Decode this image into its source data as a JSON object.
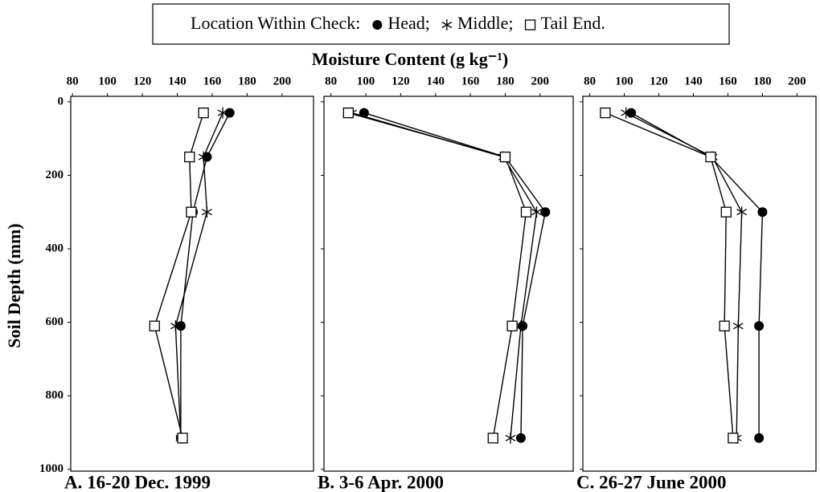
{
  "legend_title": "Location Within Check:",
  "xlabel": "Moisture Content (g kg⁻¹)",
  "ylabel": "Soil Depth (mm)",
  "chart_data": [
    {
      "type": "line",
      "title": "A. 16-20 Dec. 1999",
      "y": [
        30,
        150,
        300,
        610,
        915
      ],
      "xlim": [
        79,
        218
      ],
      "xticks": [
        80,
        100,
        120,
        140,
        160,
        180,
        200
      ],
      "ylim": [
        -15,
        1005
      ],
      "y_inverted": true,
      "yticks": [
        0,
        200,
        400,
        600,
        800,
        1000
      ],
      "ytick_labels": true,
      "series": [
        {
          "name": "Head;",
          "color": "#000000",
          "marker": "circle",
          "values": [
            170,
            157,
            149,
            142,
            142
          ]
        },
        {
          "name": "Middle;",
          "color": "#000000",
          "marker": "asterisk",
          "values": [
            166,
            155,
            157,
            139,
            142
          ]
        },
        {
          "name": "Tail End.",
          "color": "#000000",
          "marker": "square",
          "values": [
            155,
            147,
            148,
            127,
            143
          ]
        }
      ]
    },
    {
      "type": "line",
      "title": "B. 3-6 Apr. 2000",
      "y": [
        30,
        150,
        300,
        610,
        915
      ],
      "xlim": [
        76,
        219
      ],
      "xticks": [
        80,
        100,
        120,
        140,
        160,
        180,
        200
      ],
      "ylim": [
        -15,
        1005
      ],
      "y_inverted": true,
      "yticks": [
        0,
        200,
        400,
        600,
        800,
        1000
      ],
      "ytick_labels": false,
      "series": [
        {
          "name": "Head;",
          "color": "#000000",
          "marker": "circle",
          "values": [
            99,
            180,
            203,
            190,
            189
          ]
        },
        {
          "name": "Middle;",
          "color": "#000000",
          "marker": "asterisk",
          "values": [
            92,
            179,
            198,
            189,
            183
          ]
        },
        {
          "name": "Tail End.",
          "color": "#000000",
          "marker": "square",
          "values": [
            90,
            180,
            192,
            184,
            173
          ]
        }
      ]
    },
    {
      "type": "line",
      "title": "C. 26-27 June 2000",
      "y": [
        30,
        150,
        300,
        610,
        915
      ],
      "xlim": [
        76,
        211
      ],
      "xticks": [
        80,
        100,
        120,
        140,
        160,
        180,
        200
      ],
      "ylim": [
        -15,
        1005
      ],
      "y_inverted": true,
      "yticks": [
        0,
        200,
        400,
        600,
        800,
        1000
      ],
      "ytick_labels": false,
      "series": [
        {
          "name": "Head;",
          "color": "#000000",
          "marker": "circle",
          "values": [
            104,
            150,
            180,
            178,
            178
          ]
        },
        {
          "name": "Middle;",
          "color": "#000000",
          "marker": "asterisk",
          "values": [
            101,
            151,
            168,
            166,
            165
          ]
        },
        {
          "name": "Tail End.",
          "color": "#000000",
          "marker": "square",
          "values": [
            89,
            150,
            159,
            158,
            163
          ]
        }
      ]
    }
  ]
}
